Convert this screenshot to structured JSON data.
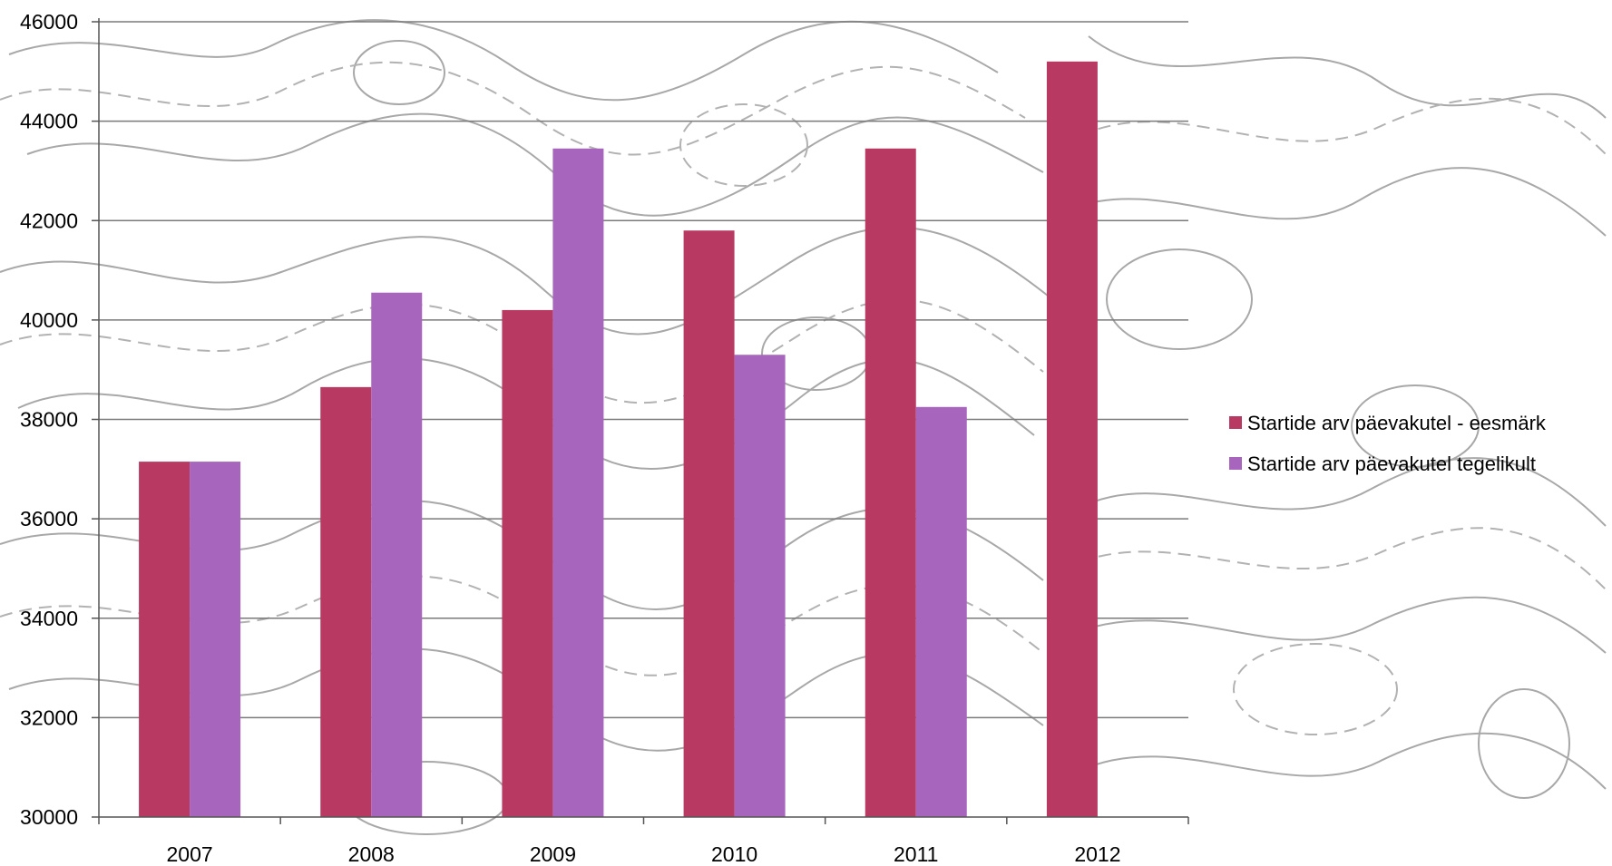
{
  "chart_data": {
    "type": "bar",
    "categories": [
      "2007",
      "2008",
      "2009",
      "2010",
      "2011",
      "2012"
    ],
    "series": [
      {
        "name": "Startide arv päevakutel - eesmärk",
        "color": "#b83a62",
        "values": [
          37150,
          38650,
          40200,
          41800,
          43450,
          45200
        ]
      },
      {
        "name": "Startide arv päevakutel tegelikult",
        "color": "#a765bd",
        "values": [
          37150,
          40550,
          43450,
          39300,
          38250,
          null
        ]
      }
    ],
    "ylim": [
      30000,
      46000
    ],
    "yticks": [
      30000,
      32000,
      34000,
      36000,
      38000,
      40000,
      42000,
      44000,
      46000
    ],
    "grid": true,
    "legend_position": "right",
    "background": "topographic contour map pattern",
    "gridline_color": "#7a7a7a"
  }
}
